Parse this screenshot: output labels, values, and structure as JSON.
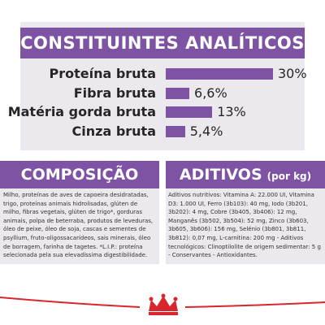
{
  "analytics": {
    "title": "CONSTITUINTES ANALÍTICOS",
    "rows": [
      {
        "label": "Proteína bruta",
        "value_text": "30%",
        "value": 30
      },
      {
        "label": "Fibra bruta",
        "value_text": "6,6%",
        "value": 6.6
      },
      {
        "label": "Matéria gorda bruta",
        "value_text": "13%",
        "value": 13
      },
      {
        "label": "Cinza bruta",
        "value_text": "5,4%",
        "value": 5.4
      }
    ]
  },
  "composition": {
    "title": "COMPOSIÇÃO",
    "text": "Milho, proteínas de aves de capoeira desidratadas, trigo, proteínas animais hidrolisadas, glúten de milho, fibras vegetais, glúten de trigo*, gorduras animais, polpa de beterraba, produtos de leveduras, óleo de peixe, óleo de soja, cascas e sementes de psyllium, fruto-oligossacarídeos, sais minerais, óleo de borragem, farinha de tagetes. *L.I.P.: proteína selecionada pela sua elevadíssima digestibilidade."
  },
  "additives": {
    "title": "ADITIVOS",
    "title_suffix": "(por kg)",
    "text": "Aditivos nutritivos: Vitamina A: 22.000 UI, Vitamina D3: 1.000 UI, Ferro (3b103): 40 mg, Iodo (3b201, 3b202): 4 mg, Cobre (3b405, 3b406): 12 mg, Manganês (3b502, 3b504): 52 mg, Zinco (3b603, 3b605, 3b606): 156 mg, Selénio (3b801, 3b811, 3b812): 0,07 mg, L-carnitina: 200 mg - Aditivos tecnológicos: Clinoptilolite de origem sedimentar: 5 g - Conservantes - Antioxidantes."
  },
  "colors": {
    "purple": "#7e53a3",
    "panel": "#ebe8ee",
    "brand_red": "#d7262e"
  },
  "logo": {
    "icon": "royal-canin-crown-icon"
  }
}
